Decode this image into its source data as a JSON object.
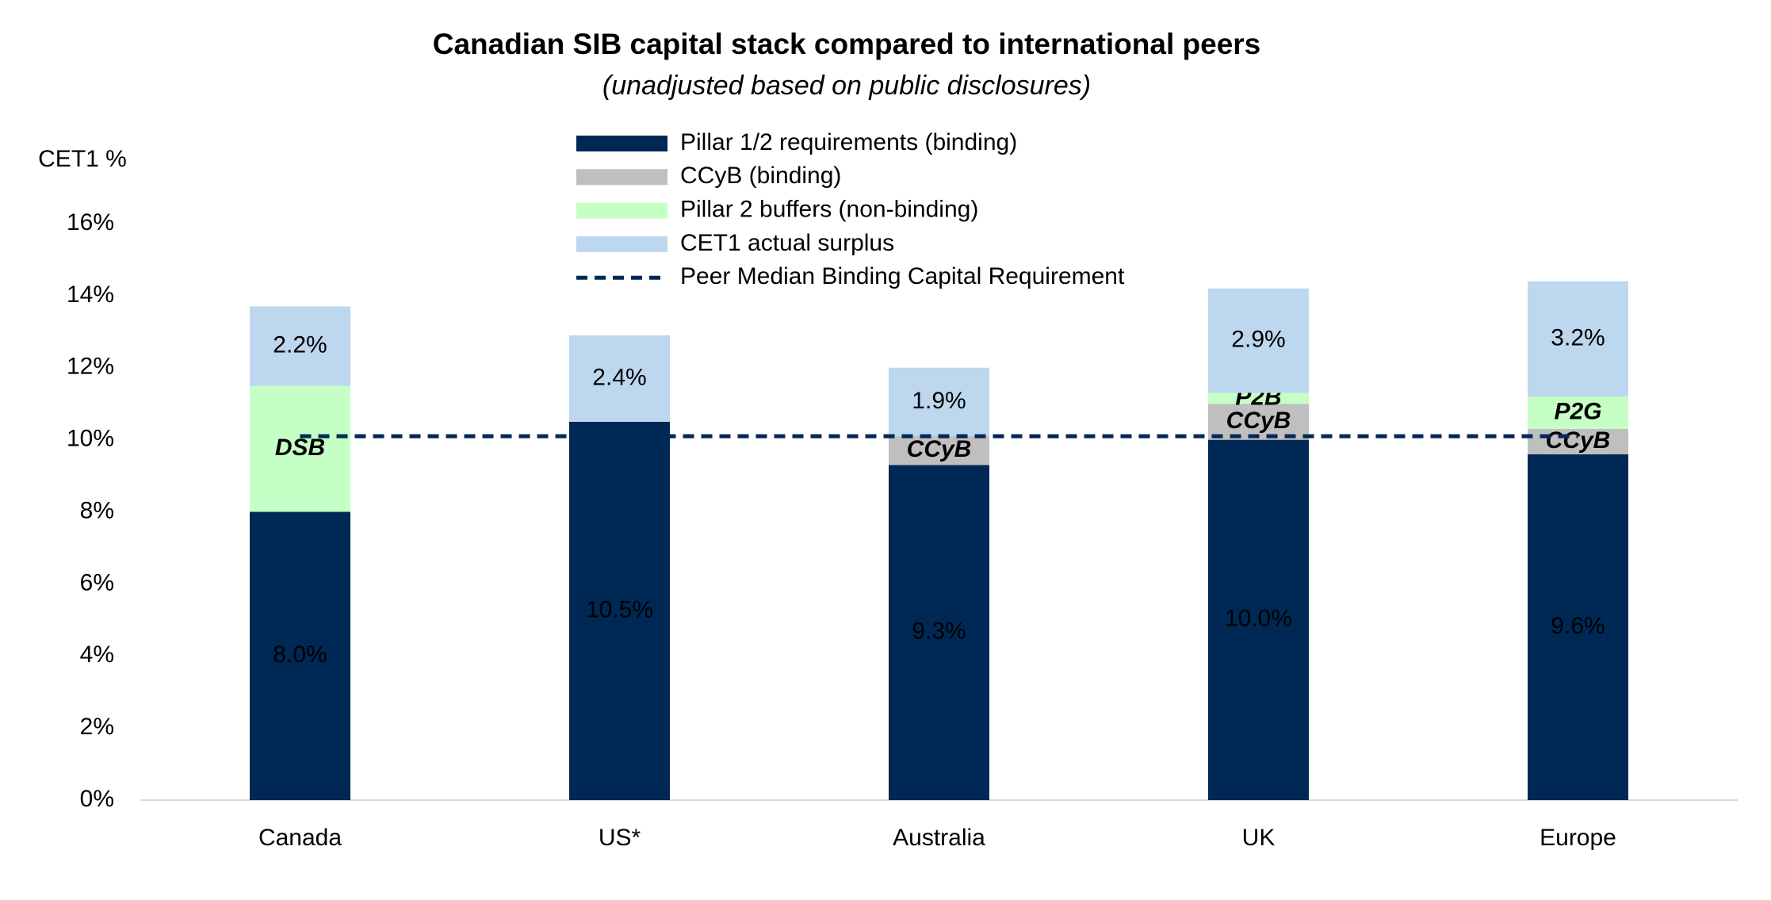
{
  "chart_data": {
    "type": "stacked_bar",
    "title": "Canadian SIB capital stack compared to international peers",
    "subtitle": "(unadjusted based on public disclosures)",
    "y_label": "CET1 %",
    "categories": [
      "Canada",
      "US*",
      "Australia",
      "UK",
      "Europe"
    ],
    "series": [
      {
        "name": "Pillar 1/2 requirements (binding)",
        "color": "#002855",
        "label_color": "#ffffff",
        "label_italic_bold": false,
        "values": [
          8.0,
          10.5,
          9.3,
          10.0,
          9.6
        ],
        "value_labels": [
          "8.0%",
          "10.5%",
          "9.3%",
          "10.0%",
          "9.6%"
        ]
      },
      {
        "name": "CCyB (binding)",
        "color": "#bfbfbf",
        "label_color": "#000000",
        "label_italic_bold": true,
        "values": [
          null,
          null,
          0.8,
          1.0,
          0.7
        ],
        "value_labels": [
          null,
          null,
          "CCyB",
          "CCyB",
          "CCyB"
        ]
      },
      {
        "name": "Pillar 2 buffers (non-binding)",
        "color": "#c6ffc6",
        "label_color": "#000000",
        "label_italic_bold": true,
        "values": [
          3.5,
          null,
          null,
          0.3,
          0.9
        ],
        "value_labels": [
          "DSB",
          null,
          null,
          "P2B",
          "P2G"
        ]
      },
      {
        "name": "CET1 actual surplus",
        "color": "#bdd7ee",
        "label_color": "#000000",
        "label_italic_bold": false,
        "values": [
          2.2,
          2.4,
          1.9,
          2.9,
          3.2
        ],
        "value_labels": [
          "2.2%",
          "2.4%",
          "1.9%",
          "2.9%",
          "3.2%"
        ]
      }
    ],
    "reference_line": {
      "name": "Peer Median Binding Capital Requirement",
      "value": 10.1,
      "color": "#002855"
    },
    "ylim": [
      0,
      16
    ],
    "yticks": [
      {
        "value": 0,
        "label": "0%"
      },
      {
        "value": 2,
        "label": "2%"
      },
      {
        "value": 4,
        "label": "4%"
      },
      {
        "value": 6,
        "label": "6%"
      },
      {
        "value": 8,
        "label": "8%"
      },
      {
        "value": 10,
        "label": "10%"
      },
      {
        "value": 12,
        "label": "12%"
      },
      {
        "value": 14,
        "label": "14%"
      },
      {
        "value": 16,
        "label": "16%"
      }
    ],
    "grid": false
  }
}
